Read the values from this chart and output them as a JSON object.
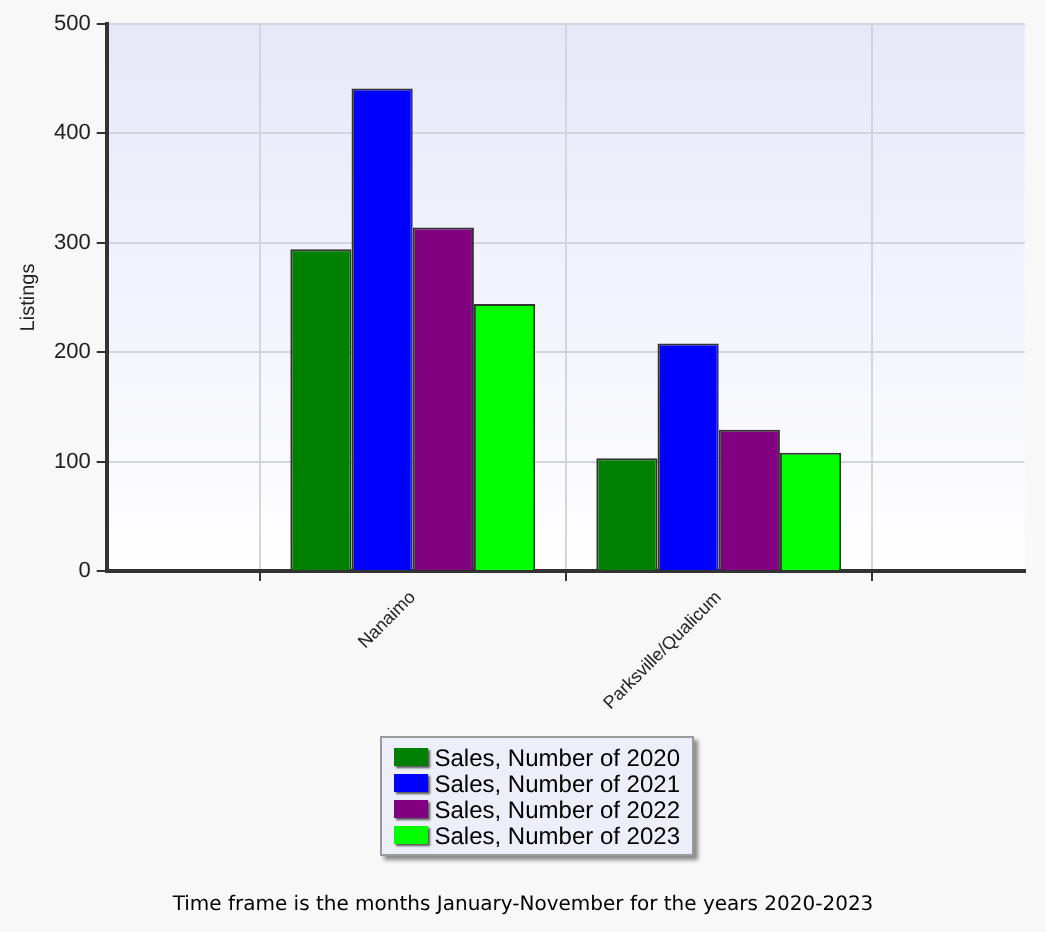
{
  "chart_data": {
    "type": "bar",
    "ylabel": "Listings",
    "categories": [
      "Nanaimo",
      "Parksville/Qualicum"
    ],
    "series": [
      {
        "name": "Sales, Number of 2020",
        "color": "#008000",
        "values": [
          294,
          103
        ]
      },
      {
        "name": "Sales, Number of 2021",
        "color": "#0000ff",
        "values": [
          441,
          208
        ]
      },
      {
        "name": "Sales, Number of 2022",
        "color": "#800080",
        "values": [
          314,
          129
        ]
      },
      {
        "name": "Sales, Number of 2023",
        "color": "#00ff00",
        "values": [
          244,
          108
        ]
      }
    ],
    "ylim": [
      0,
      500
    ],
    "yticks": [
      0,
      100,
      200,
      300,
      400,
      500
    ],
    "grid": true,
    "legend": "bottom",
    "annotations": [
      "Time frame is the months January-November for the years 2020-2023"
    ]
  }
}
